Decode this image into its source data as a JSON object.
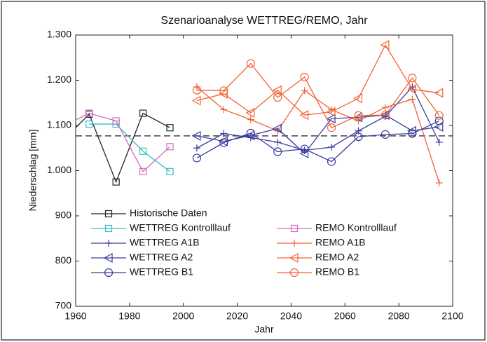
{
  "chart_data": {
    "type": "line",
    "title": "Szenarioanalyse WETTREG/REMO, Jahr",
    "xlabel": "Jahr",
    "ylabel": "Niederschlag [mm]",
    "xlim": [
      1960,
      2100
    ],
    "xticks": [
      1960,
      1980,
      2000,
      2020,
      2040,
      2060,
      2080,
      2100
    ],
    "ylim": [
      700,
      1300
    ],
    "yticks": [
      700,
      800,
      900,
      {
        "value": 1000,
        "label": "1.000"
      },
      {
        "value": 1100,
        "label": "1.100"
      },
      {
        "value": 1200,
        "label": "1.200"
      },
      {
        "value": 1300,
        "label": "1.300"
      }
    ],
    "reference_line": {
      "value": 1077,
      "color": "#444444",
      "dashed": true
    },
    "series": [
      {
        "name": "Historische Daten",
        "color": "#222222",
        "marker": "square",
        "x": [
          1955,
          1965,
          1975,
          1985,
          1995
        ],
        "values": [
          1065,
          1125,
          975,
          1127,
          1095
        ]
      },
      {
        "name": "WETTREG Kontrolllauf",
        "color": "#33bfc4",
        "marker": "square",
        "x": [
          1965,
          1975,
          1985,
          1995
        ],
        "values": [
          1103,
          1103,
          1043,
          998
        ]
      },
      {
        "name": "REMO Kontrolllauf",
        "color": "#d468c4",
        "marker": "square",
        "x": [
          1955,
          1965,
          1975,
          1985,
          1995
        ],
        "values": [
          1097,
          1127,
          1110,
          998,
          1053
        ]
      },
      {
        "name": "WETTREG A1B",
        "color": "#3b3b9e",
        "marker": "plus",
        "x": [
          2005,
          2015,
          2025,
          2035,
          2045,
          2055,
          2065,
          2075,
          2085,
          2095
        ],
        "values": [
          1050,
          1082,
          1073,
          1063,
          1045,
          1052,
          1088,
          1120,
          1185,
          1063
        ]
      },
      {
        "name": "REMO A1B",
        "color": "#f26335",
        "marker": "plus",
        "x": [
          2005,
          2015,
          2025,
          2035,
          2045,
          2055,
          2065,
          2075,
          2085,
          2095
        ],
        "values": [
          1185,
          1135,
          1113,
          1088,
          1177,
          1135,
          1110,
          1140,
          1158,
          973
        ]
      },
      {
        "name": "WETTREG A2",
        "color": "#3b3b9e",
        "marker": "triangle-left",
        "x": [
          2005,
          2015,
          2025,
          2035,
          2045,
          2055,
          2065,
          2075,
          2085,
          2095
        ],
        "values": [
          1077,
          1065,
          1078,
          1093,
          1038,
          1115,
          1118,
          1123,
          1088,
          1097
        ]
      },
      {
        "name": "REMO A2",
        "color": "#f26335",
        "marker": "triangle-left",
        "x": [
          2005,
          2015,
          2025,
          2035,
          2045,
          2055,
          2065,
          2075,
          2085,
          2095
        ],
        "values": [
          1155,
          1170,
          1128,
          1178,
          1123,
          1130,
          1160,
          1278,
          1180,
          1172
        ]
      },
      {
        "name": "WETTREG B1",
        "color": "#3b3b9e",
        "marker": "circle",
        "x": [
          2005,
          2015,
          2025,
          2035,
          2045,
          2055,
          2065,
          2075,
          2085,
          2095
        ],
        "values": [
          1028,
          1062,
          1083,
          1042,
          1048,
          1020,
          1075,
          1080,
          1082,
          1110
        ]
      },
      {
        "name": "REMO B1",
        "color": "#f26335",
        "marker": "circle",
        "x": [
          2005,
          2015,
          2025,
          2035,
          2045,
          2055,
          2065,
          2075,
          2085,
          2095
        ],
        "values": [
          1178,
          1177,
          1237,
          1162,
          1207,
          1095,
          1122,
          1123,
          1205,
          1122
        ]
      }
    ]
  }
}
